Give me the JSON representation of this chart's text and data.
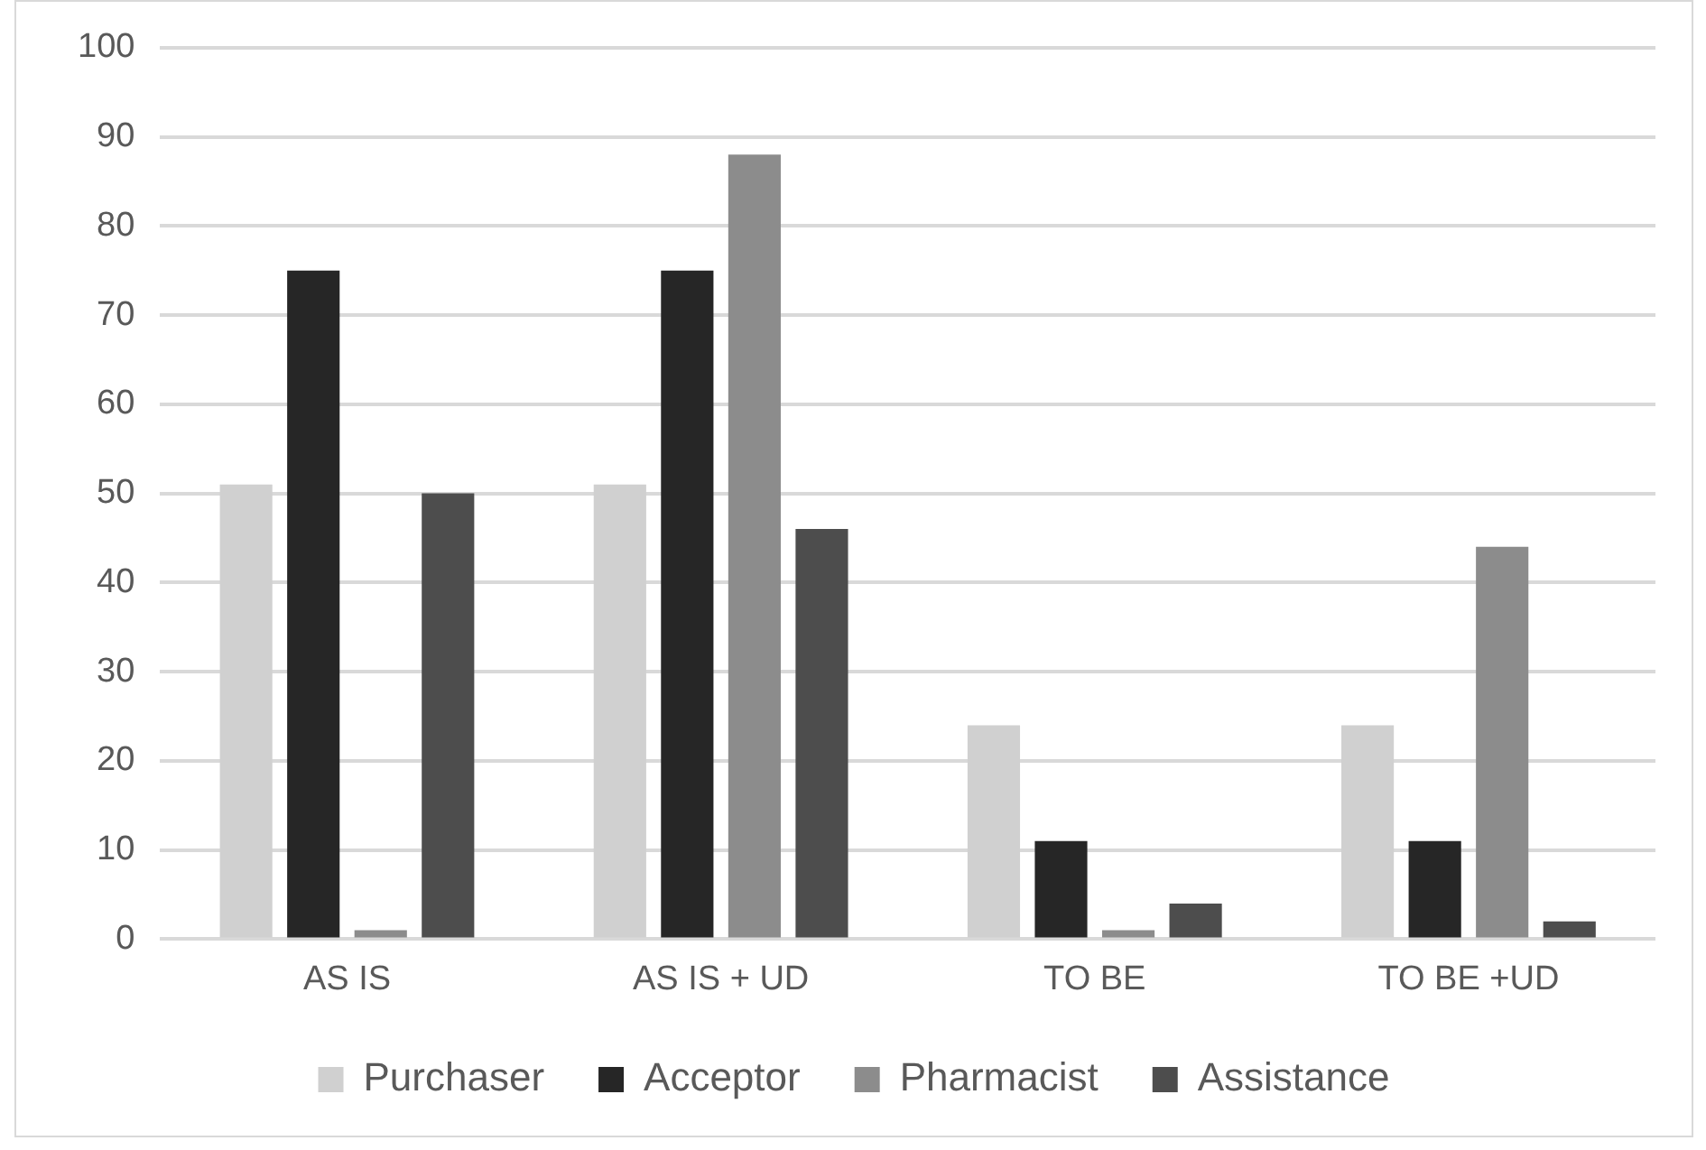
{
  "chart_data": {
    "type": "bar",
    "categories": [
      "AS IS",
      "AS IS + UD",
      "TO BE",
      "TO BE +UD"
    ],
    "series": [
      {
        "name": "Purchaser",
        "color": "#d0d0d0",
        "values": [
          51,
          51,
          24,
          24
        ]
      },
      {
        "name": "Acceptor",
        "color": "#262626",
        "values": [
          75,
          75,
          11,
          11
        ]
      },
      {
        "name": "Pharmacist",
        "color": "#8c8c8c",
        "values": [
          1,
          88,
          1,
          44
        ]
      },
      {
        "name": "Assistance",
        "color": "#4d4d4d",
        "values": [
          50,
          46,
          4,
          2
        ]
      }
    ],
    "ylim": [
      0,
      100
    ],
    "yticks": [
      0,
      10,
      20,
      30,
      40,
      50,
      60,
      70,
      80,
      90,
      100
    ],
    "grid": "y",
    "legend": "bottom"
  }
}
